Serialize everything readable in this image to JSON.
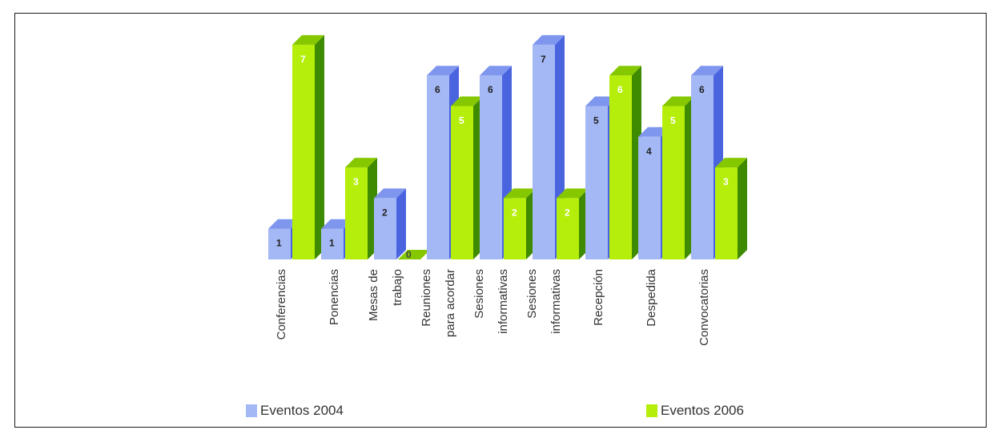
{
  "chart_data": {
    "type": "bar",
    "title": "",
    "xlabel": "",
    "ylabel": "",
    "categories": [
      [
        "Conferencias"
      ],
      [
        "Ponencias"
      ],
      [
        "Mesas de",
        "trabajo"
      ],
      [
        "Reuniones",
        "para acordar"
      ],
      [
        "Sesiones",
        "informativas"
      ],
      [
        "Sesiones",
        "informativas"
      ],
      [
        "Recepción"
      ],
      [
        "Despedida"
      ],
      [
        "Convocatorias"
      ]
    ],
    "series": [
      {
        "name": "Eventos 2004",
        "values": [
          1,
          1,
          2,
          6,
          6,
          7,
          5,
          4,
          6
        ]
      },
      {
        "name": "Eventos 2006",
        "values": [
          7,
          3,
          0,
          5,
          2,
          2,
          6,
          5,
          3
        ]
      }
    ],
    "ylim": [
      0,
      7
    ],
    "grid": false,
    "legend": "bottom",
    "colors": {
      "series_2004": {
        "front": "#a4b8f5",
        "side": "#4a64e0",
        "top": "#7f96ee"
      },
      "series_2006": {
        "front": "#b6ee0c",
        "side": "#3e8a00",
        "top": "#86c800"
      }
    }
  }
}
